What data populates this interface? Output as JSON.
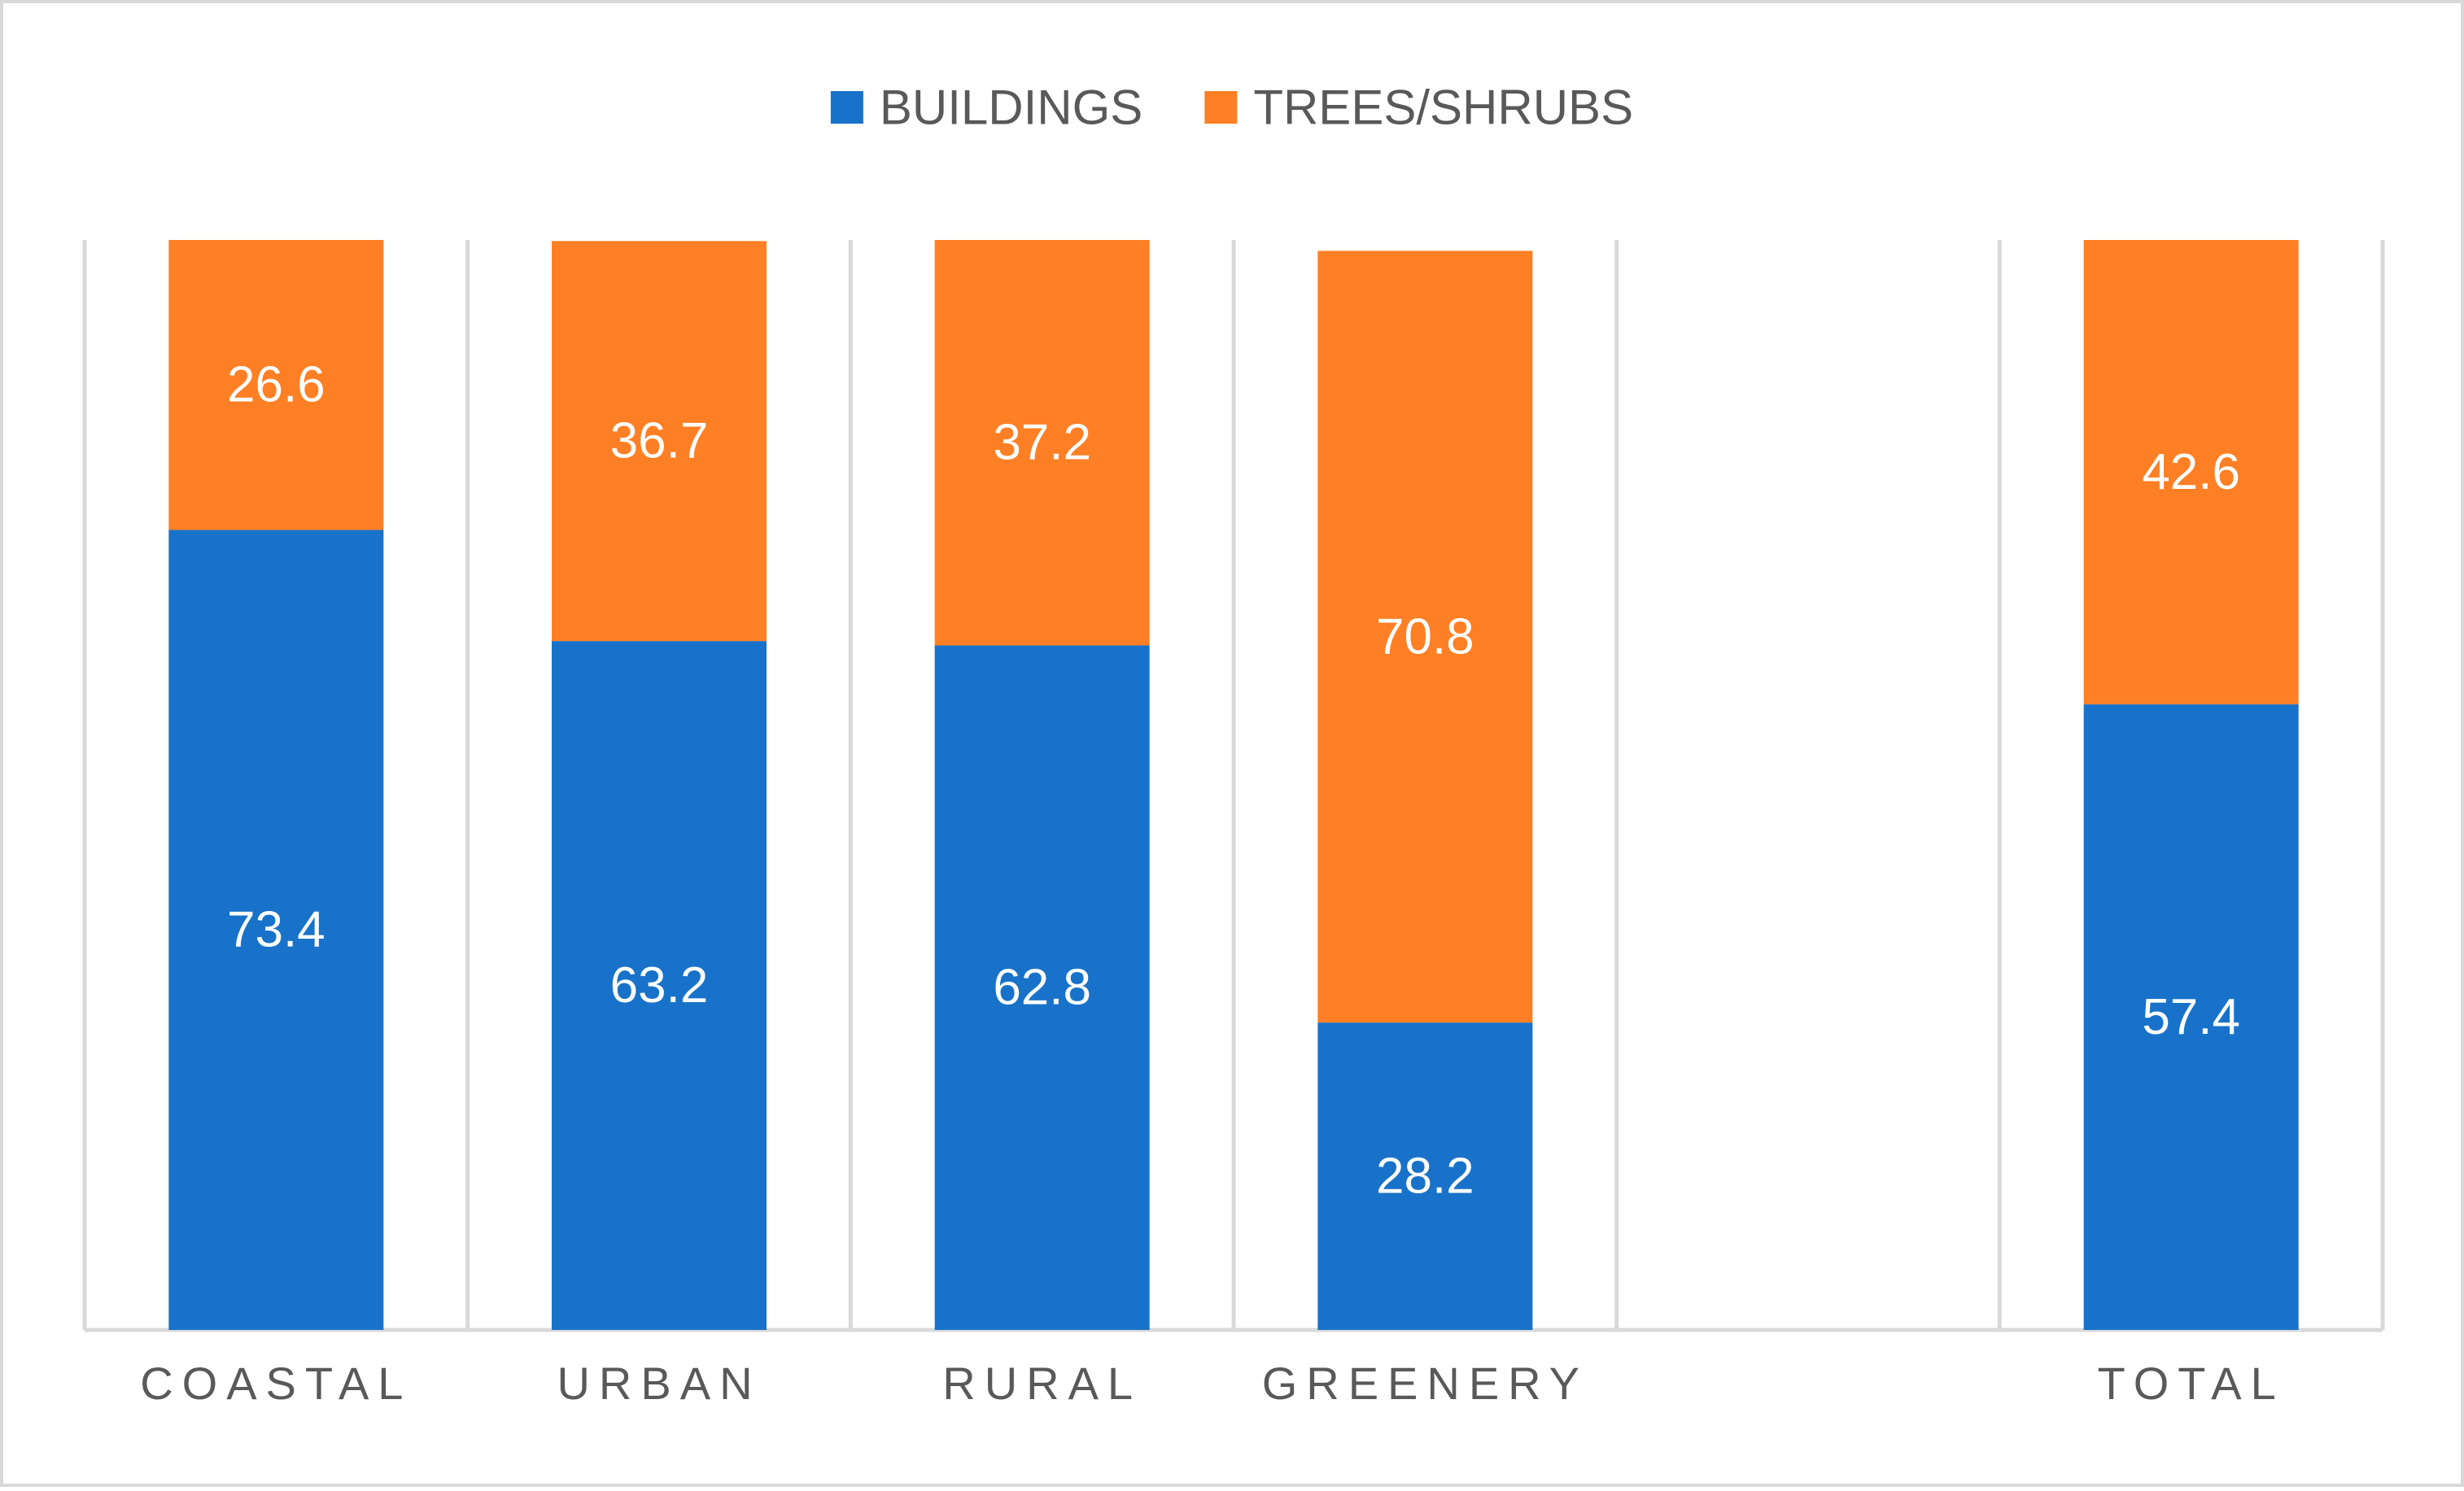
{
  "chart_data": {
    "type": "bar",
    "stacked": true,
    "normalized_percent": true,
    "categories": [
      "COASTAL",
      "URBAN",
      "RURAL",
      "GREENERY",
      "",
      "TOTAL"
    ],
    "series": [
      {
        "name": "BUILDINGS",
        "color": "#1872C9",
        "values": [
          73.4,
          63.2,
          62.8,
          28.2,
          null,
          57.4
        ]
      },
      {
        "name": "TREES/SHRUBS",
        "color": "#FE7F24",
        "values": [
          26.6,
          36.7,
          37.2,
          70.8,
          null,
          42.6
        ]
      }
    ],
    "title": "",
    "xlabel": "",
    "ylabel": "",
    "ylim": [
      0,
      100
    ],
    "y_axis_visible": false,
    "grid": "vertical category separators",
    "legend": "top-center"
  },
  "colors": {
    "gridline": "#D9D9D9",
    "border": "#D9D9D9",
    "label_text": "#595959",
    "data_label_text": "#FFFFFF"
  }
}
